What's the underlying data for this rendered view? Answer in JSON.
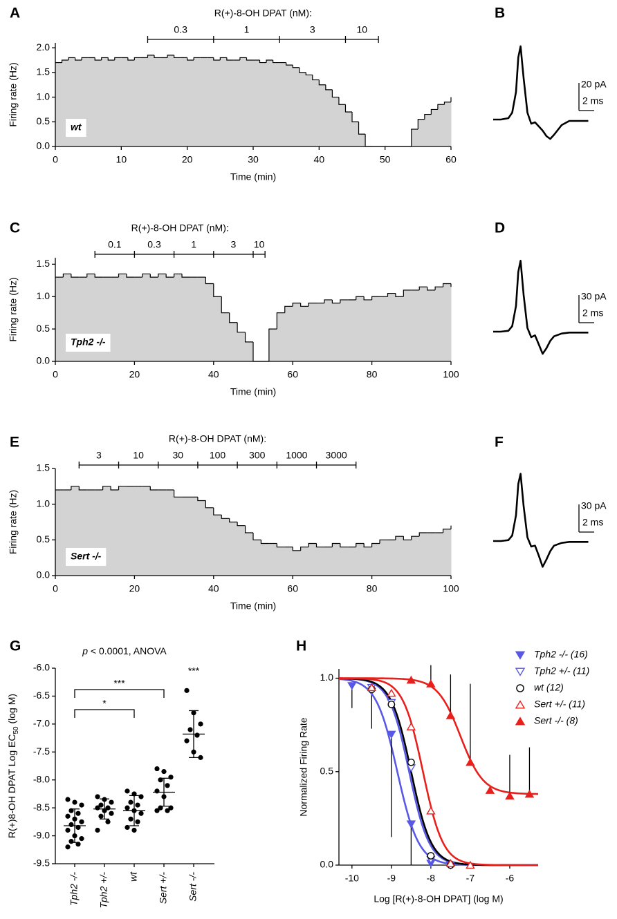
{
  "chart_data": [
    {
      "type": "step-area",
      "panel": "A",
      "title": "R(+)-8-OH DPAT (nM):",
      "annotation": "wt",
      "x_label": "Time (min)",
      "y_label": "Firing rate (Hz)",
      "color": "#d3d3d3",
      "line_color": "#000000",
      "concentrations": [
        0.3,
        1,
        3,
        10
      ],
      "boundaries": [
        14,
        24,
        34,
        44,
        49
      ],
      "x": [
        0,
        1,
        2,
        3,
        4,
        5,
        6,
        7,
        8,
        9,
        10,
        11,
        12,
        13,
        14,
        15,
        16,
        17,
        18,
        19,
        20,
        21,
        22,
        23,
        24,
        25,
        26,
        27,
        28,
        29,
        30,
        31,
        32,
        33,
        34,
        35,
        36,
        37,
        38,
        39,
        40,
        41,
        42,
        43,
        44,
        45,
        46,
        47,
        48,
        49,
        50,
        51,
        52,
        53,
        54,
        55,
        56,
        57,
        58,
        59,
        60
      ],
      "values": [
        1.7,
        1.75,
        1.8,
        1.75,
        1.8,
        1.8,
        1.75,
        1.8,
        1.75,
        1.8,
        1.8,
        1.75,
        1.8,
        1.8,
        1.85,
        1.8,
        1.8,
        1.85,
        1.8,
        1.8,
        1.75,
        1.8,
        1.8,
        1.8,
        1.75,
        1.8,
        1.75,
        1.75,
        1.8,
        1.75,
        1.75,
        1.7,
        1.75,
        1.7,
        1.7,
        1.65,
        1.6,
        1.5,
        1.45,
        1.35,
        1.25,
        1.15,
        1.0,
        0.85,
        0.7,
        0.5,
        0.25,
        0,
        0,
        0,
        0,
        0,
        0,
        0,
        0.35,
        0.55,
        0.65,
        0.75,
        0.85,
        0.9,
        1.0
      ],
      "xlim": [
        0,
        60
      ],
      "xticks": [
        0,
        10,
        20,
        30,
        40,
        50,
        60
      ],
      "ylim": [
        0,
        2.1
      ],
      "yticks": [
        {
          "value": 0,
          "label": "0.0"
        },
        0.5,
        {
          "value": 1,
          "label": "1.0"
        },
        1.5,
        {
          "value": 2,
          "label": "2.0"
        }
      ]
    },
    {
      "type": "waveform",
      "panel": "B",
      "color": "#000000",
      "x": [
        0,
        1,
        2,
        2.5,
        3,
        3.3,
        3.6,
        4,
        4.5,
        5,
        5.5,
        6,
        6.5,
        7,
        7.5,
        8,
        9,
        10,
        11,
        12.5
      ],
      "values": [
        0,
        0,
        1,
        5,
        20,
        45,
        53,
        30,
        5,
        -3,
        -2,
        -5,
        -8,
        -12,
        -14,
        -11,
        -4,
        -1,
        -1,
        -1
      ],
      "scale_y": {
        "value": 20,
        "label": "20 pA"
      },
      "scale_x": {
        "value": 2,
        "label": "2 ms"
      }
    },
    {
      "type": "step-area",
      "panel": "C",
      "title": "R(+)-8-OH DPAT (nM):",
      "annotation": "Tph2 -/-",
      "x_label": "Time (min)",
      "y_label": "Firing rate (Hz)",
      "color": "#d3d3d3",
      "line_color": "#000000",
      "concentrations": [
        0.1,
        0.3,
        1,
        3,
        10
      ],
      "boundaries": [
        10,
        20,
        30,
        40,
        50,
        53
      ],
      "x": [
        0,
        2,
        4,
        6,
        8,
        10,
        12,
        14,
        16,
        18,
        20,
        22,
        24,
        26,
        28,
        30,
        32,
        34,
        36,
        38,
        40,
        42,
        44,
        46,
        48,
        50,
        52,
        54,
        56,
        58,
        60,
        62,
        64,
        66,
        68,
        70,
        72,
        74,
        76,
        78,
        80,
        82,
        84,
        86,
        88,
        90,
        92,
        94,
        96,
        98,
        100
      ],
      "values": [
        1.3,
        1.35,
        1.3,
        1.3,
        1.35,
        1.3,
        1.3,
        1.3,
        1.35,
        1.3,
        1.3,
        1.35,
        1.3,
        1.35,
        1.3,
        1.35,
        1.3,
        1.3,
        1.3,
        1.2,
        1.0,
        0.75,
        0.6,
        0.45,
        0.3,
        0,
        0,
        0.5,
        0.75,
        0.85,
        0.9,
        0.85,
        0.9,
        0.9,
        0.95,
        0.9,
        0.95,
        0.95,
        1.0,
        0.95,
        1.0,
        1.0,
        1.05,
        1.0,
        1.1,
        1.1,
        1.15,
        1.1,
        1.15,
        1.2,
        1.15
      ],
      "xlim": [
        0,
        100
      ],
      "xticks": [
        0,
        20,
        40,
        60,
        80,
        100
      ],
      "ylim": [
        0,
        1.6
      ],
      "yticks": [
        {
          "value": 0,
          "label": "0.0"
        },
        0.5,
        {
          "value": 1,
          "label": "1.0"
        },
        1.5
      ]
    },
    {
      "type": "waveform",
      "panel": "D",
      "color": "#000000",
      "x": [
        0,
        1,
        2,
        2.5,
        3,
        3.3,
        3.6,
        4,
        4.5,
        5,
        5.5,
        6,
        6.5,
        7,
        7.5,
        8,
        9,
        10,
        11,
        12.5
      ],
      "values": [
        0,
        0,
        1,
        6,
        28,
        65,
        77,
        40,
        4,
        -6,
        -4,
        -14,
        -24,
        -18,
        -10,
        -5,
        -2,
        -1,
        -1,
        -1
      ],
      "scale_y": {
        "value": 30,
        "label": "30 pA"
      },
      "scale_x": {
        "value": 2,
        "label": "2 ms"
      }
    },
    {
      "type": "step-area",
      "panel": "E",
      "title": "R(+)-8-OH DPAT (nM):",
      "annotation": "Sert -/-",
      "x_label": "Time (min)",
      "y_label": "Firing rate (Hz)",
      "color": "#d3d3d3",
      "line_color": "#000000",
      "concentrations": [
        3,
        10,
        30,
        100,
        300,
        1000,
        3000
      ],
      "boundaries": [
        6,
        16,
        26,
        36,
        46,
        56,
        66,
        76
      ],
      "x": [
        0,
        2,
        4,
        6,
        8,
        10,
        12,
        14,
        16,
        18,
        20,
        22,
        24,
        26,
        28,
        30,
        32,
        34,
        36,
        38,
        40,
        42,
        44,
        46,
        48,
        50,
        52,
        54,
        56,
        58,
        60,
        62,
        64,
        66,
        68,
        70,
        72,
        74,
        76,
        78,
        80,
        82,
        84,
        86,
        88,
        90,
        92,
        94,
        96,
        98,
        100
      ],
      "values": [
        1.2,
        1.2,
        1.25,
        1.2,
        1.2,
        1.2,
        1.25,
        1.2,
        1.25,
        1.25,
        1.25,
        1.25,
        1.2,
        1.2,
        1.2,
        1.1,
        1.1,
        1.1,
        1.05,
        0.95,
        0.85,
        0.8,
        0.75,
        0.7,
        0.6,
        0.5,
        0.45,
        0.45,
        0.4,
        0.4,
        0.35,
        0.4,
        0.45,
        0.4,
        0.4,
        0.45,
        0.4,
        0.4,
        0.45,
        0.4,
        0.45,
        0.5,
        0.5,
        0.55,
        0.5,
        0.55,
        0.6,
        0.6,
        0.6,
        0.65,
        0.7
      ],
      "xlim": [
        0,
        100
      ],
      "xticks": [
        0,
        20,
        40,
        60,
        80,
        100
      ],
      "ylim": [
        0,
        1.5
      ],
      "yticks": [
        {
          "value": 0,
          "label": "0.0"
        },
        0.5,
        {
          "value": 1,
          "label": "1.0"
        },
        1.5
      ]
    },
    {
      "type": "waveform",
      "panel": "F",
      "color": "#000000",
      "x": [
        0,
        1,
        2,
        2.5,
        3,
        3.3,
        3.6,
        4,
        4.5,
        5,
        5.5,
        6,
        6.5,
        7,
        7.5,
        8,
        9,
        10,
        11,
        12.5
      ],
      "values": [
        0,
        0,
        1,
        6,
        28,
        62,
        73,
        38,
        4,
        -6,
        -5,
        -16,
        -28,
        -20,
        -11,
        -5,
        -2,
        -1,
        -1,
        -1
      ],
      "scale_y": {
        "value": 30,
        "label": "30 pA"
      },
      "scale_x": {
        "value": 2,
        "label": "2 ms"
      }
    },
    {
      "type": "dot-plot",
      "panel": "G",
      "subtitle": [
        "p",
        " < 0.0001, ANOVA"
      ],
      "y_label": [
        "R(+)8-OH DPAT Log EC",
        "50",
        " (log M)"
      ],
      "categories": [
        "Tph2 -/-",
        "Tph2 +/-",
        "wt",
        "Sert +/-",
        "Sert -/-"
      ],
      "points": [
        [
          -8.35,
          -8.4,
          -8.45,
          -8.55,
          -8.6,
          -8.65,
          -8.7,
          -8.75,
          -8.8,
          -8.85,
          -8.9,
          -9.0,
          -9.05,
          -9.1,
          -9.15,
          -9.2
        ],
        [
          -8.3,
          -8.35,
          -8.4,
          -8.45,
          -8.5,
          -8.5,
          -8.55,
          -8.6,
          -8.65,
          -8.75,
          -8.9
        ],
        [
          -8.2,
          -8.25,
          -8.3,
          -8.4,
          -8.45,
          -8.5,
          -8.55,
          -8.6,
          -8.7,
          -8.75,
          -8.85,
          -8.9
        ],
        [
          -7.8,
          -7.85,
          -7.95,
          -8.0,
          -8.1,
          -8.2,
          -8.3,
          -8.5,
          -8.5,
          -8.55,
          -8.55
        ],
        [
          -6.4,
          -6.8,
          -7.0,
          -7.1,
          -7.2,
          -7.3,
          -7.5,
          -7.6
        ]
      ],
      "means": [
        -8.82,
        -8.52,
        -8.55,
        -8.22,
        -7.18
      ],
      "sds": [
        0.3,
        0.18,
        0.27,
        0.25,
        0.42
      ],
      "point_color": "#000000",
      "mean_color": "#e0201b",
      "brackets": [
        {
          "label": "***",
          "from": 0,
          "to": 3
        },
        {
          "label": "*",
          "from": 0,
          "to": 2
        }
      ],
      "marks": [
        {
          "label": "***",
          "at": 4
        }
      ],
      "ylim": [
        -9.5,
        -6.0
      ],
      "yticks": [
        {
          "value": -9.5,
          "label": "-9.5"
        },
        {
          "value": -9,
          "label": "-9.0"
        },
        -8.5,
        {
          "value": -8,
          "label": "-8.0"
        },
        -7.5,
        {
          "value": -7,
          "label": "-7.0"
        },
        -6.5,
        {
          "value": -6,
          "label": "-6.0"
        }
      ]
    },
    {
      "type": "dose-response",
      "panel": "H",
      "x_label": "Log [R(+)-8-OH DPAT] (log M)",
      "y_label": "Normalized Firing Rate",
      "legend": "top-right",
      "xlim": [
        -10.33,
        -5.28
      ],
      "xticks": [
        -10,
        -9,
        -8,
        -7,
        -6
      ],
      "ylim": [
        0,
        1.05
      ],
      "yticks": [
        {
          "value": 0,
          "label": "0.0"
        },
        0.5,
        {
          "value": 1,
          "label": "1.0"
        }
      ],
      "series": [
        {
          "name": "Tph2 -/- (16)",
          "color": "#5858e6",
          "marker": "triangle-down",
          "filled": true,
          "error_direction": "down",
          "x": [
            -10,
            -9.5,
            -9,
            -8.5,
            -8,
            -7.5
          ],
          "values": [
            0.96,
            0.93,
            0.7,
            0.22,
            0.01,
            0
          ],
          "errors": [
            0.12,
            0.2,
            0.55,
            0.22,
            null,
            null
          ],
          "fit": {
            "log_ec50": -8.85,
            "slope": 1.6,
            "top": 1,
            "bottom": 0
          }
        },
        {
          "name": "Tph2 +/- (11)",
          "color": "#5858e6",
          "marker": "triangle-down",
          "filled": false,
          "x": [
            -9.5,
            -9,
            -8.5,
            -8,
            -7.5
          ],
          "values": [
            0.95,
            0.87,
            0.52,
            0.03,
            0
          ],
          "fit": {
            "log_ec50": -8.55,
            "slope": 1.7,
            "top": 1,
            "bottom": 0
          }
        },
        {
          "name": "wt (12)",
          "color": "#000000",
          "marker": "circle",
          "filled": false,
          "x": [
            -9.5,
            -9,
            -8.5,
            -8,
            -7.5
          ],
          "values": [
            0.94,
            0.86,
            0.55,
            0.05,
            0
          ],
          "fit": {
            "log_ec50": -8.5,
            "slope": 1.7,
            "top": 1,
            "bottom": 0
          }
        },
        {
          "name": "Sert +/- (11)",
          "color": "#e8201c",
          "marker": "triangle-up",
          "filled": false,
          "x": [
            -9.5,
            -9,
            -8.5,
            -8,
            -7.5,
            -7
          ],
          "values": [
            0.95,
            0.92,
            0.74,
            0.29,
            0.01,
            0
          ],
          "fit": {
            "log_ec50": -8.2,
            "slope": 1.7,
            "top": 1,
            "bottom": 0
          }
        },
        {
          "name": "Sert -/- (8)",
          "color": "#e8201c",
          "marker": "triangle-up",
          "filled": true,
          "error_direction": "up",
          "x": [
            -8.5,
            -8,
            -7.5,
            -7,
            -6.5,
            -6,
            -5.5
          ],
          "values": [
            0.99,
            0.97,
            0.8,
            0.55,
            0.4,
            0.37,
            0.38
          ],
          "errors": [
            null,
            0.1,
            0.22,
            0.42,
            null,
            0.22,
            0.25
          ],
          "fit": {
            "log_ec50": -7.25,
            "slope": 1.5,
            "top": 1,
            "bottom": 0.38
          }
        }
      ]
    }
  ]
}
